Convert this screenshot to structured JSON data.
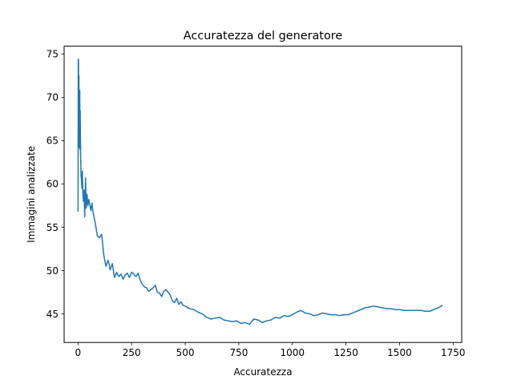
{
  "chart_data": {
    "type": "line",
    "title": "Accuratezza del generatore",
    "xlabel": "Accuratezza",
    "ylabel": "Immagini analizzate",
    "xlim": [
      -65,
      1790
    ],
    "ylim": [
      41.7,
      75.9
    ],
    "xticks": [
      0,
      250,
      500,
      750,
      1000,
      1250,
      1500,
      1750
    ],
    "yticks": [
      45,
      50,
      55,
      60,
      65,
      70,
      75
    ],
    "grid": false,
    "legend": "none",
    "series": [
      {
        "color": "#1f77b4",
        "x": [
          0,
          1,
          2,
          3,
          4,
          5,
          6,
          7,
          8,
          9,
          10,
          12,
          14,
          16,
          18,
          20,
          22,
          25,
          28,
          31,
          35,
          38,
          42,
          46,
          50,
          55,
          60,
          65,
          70,
          80,
          90,
          100,
          110,
          120,
          130,
          140,
          150,
          160,
          170,
          180,
          190,
          200,
          210,
          220,
          230,
          240,
          250,
          260,
          270,
          280,
          290,
          300,
          310,
          320,
          330,
          340,
          350,
          360,
          370,
          380,
          390,
          400,
          410,
          420,
          430,
          440,
          450,
          460,
          470,
          480,
          490,
          500,
          520,
          540,
          560,
          580,
          600,
          620,
          640,
          660,
          680,
          700,
          720,
          740,
          760,
          780,
          800,
          820,
          840,
          860,
          880,
          900,
          920,
          940,
          960,
          980,
          1000,
          1020,
          1040,
          1060,
          1080,
          1100,
          1120,
          1140,
          1160,
          1180,
          1200,
          1220,
          1240,
          1260,
          1280,
          1300,
          1320,
          1340,
          1360,
          1380,
          1400,
          1420,
          1440,
          1460,
          1480,
          1500,
          1520,
          1540,
          1560,
          1580,
          1600,
          1620,
          1640,
          1660,
          1680,
          1700
        ],
        "y": [
          56.8,
          74.4,
          74.3,
          68.0,
          72.5,
          64.2,
          69.5,
          66.0,
          70.8,
          64.0,
          68.5,
          63.2,
          61.0,
          60.5,
          59.5,
          61.5,
          59.2,
          58.0,
          59.3,
          56.2,
          60.7,
          57.2,
          58.8,
          57.5,
          58.2,
          57.6,
          56.9,
          57.8,
          56.7,
          55.5,
          54.0,
          53.8,
          54.2,
          51.8,
          50.5,
          51.2,
          50.1,
          50.8,
          49.2,
          49.8,
          49.3,
          49.6,
          49.0,
          49.5,
          49.7,
          49.2,
          49.8,
          49.6,
          49.3,
          49.7,
          48.9,
          48.4,
          48.1,
          48.0,
          47.6,
          47.8,
          48.0,
          48.3,
          47.5,
          47.4,
          47.0,
          47.6,
          47.8,
          47.5,
          47.2,
          46.5,
          46.3,
          46.8,
          46.1,
          46.4,
          46.0,
          45.9,
          45.6,
          45.5,
          45.2,
          45.0,
          44.6,
          44.4,
          44.5,
          44.6,
          44.3,
          44.2,
          44.1,
          44.2,
          43.9,
          44.0,
          43.8,
          44.4,
          44.3,
          44.0,
          44.2,
          44.3,
          44.6,
          44.5,
          44.8,
          44.7,
          44.9,
          45.2,
          45.4,
          45.1,
          45.0,
          44.8,
          44.9,
          45.1,
          45.0,
          44.9,
          44.9,
          44.8,
          44.9,
          44.9,
          45.1,
          45.3,
          45.5,
          45.7,
          45.8,
          45.9,
          45.8,
          45.7,
          45.6,
          45.6,
          45.5,
          45.5,
          45.4,
          45.4,
          45.4,
          45.4,
          45.4,
          45.3,
          45.3,
          45.5,
          45.7,
          46.0
        ]
      }
    ]
  }
}
